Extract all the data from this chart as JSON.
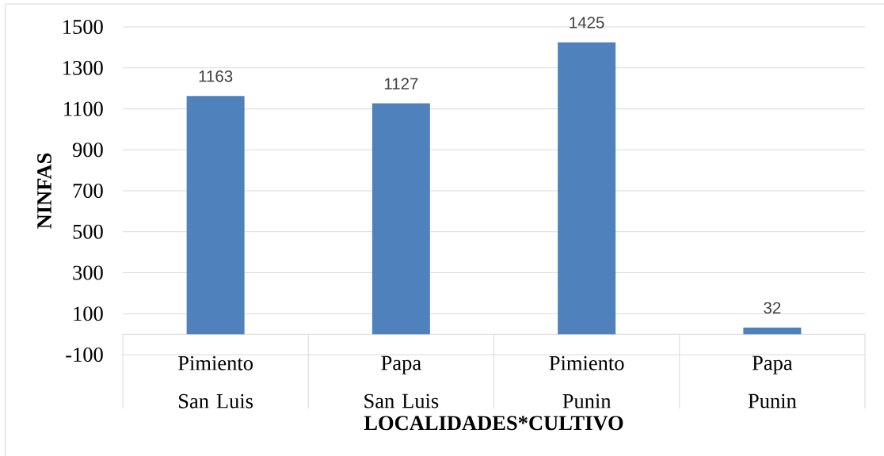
{
  "chart_data": {
    "type": "bar",
    "xlabel": "LOCALIDADES*CULTIVO",
    "ylabel": "NINFAS",
    "categories": [
      "Pimiento\nSan Luis",
      "Papa\nSan Luis",
      "Pimiento\nPunin",
      "Papa\nPunin"
    ],
    "values": [
      1163,
      1127,
      1425,
      32
    ],
    "color": "#4f81bd",
    "ylim": [
      -100,
      1500
    ],
    "yticks": [
      -100,
      100,
      300,
      500,
      700,
      900,
      1100,
      1300,
      1500
    ],
    "grid": "y",
    "data_labels": true
  }
}
